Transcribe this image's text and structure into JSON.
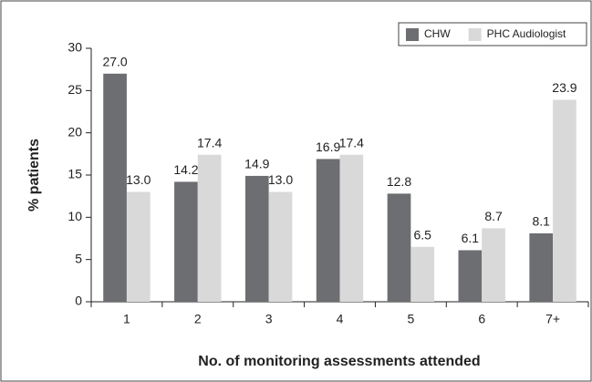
{
  "chart_data": {
    "type": "bar",
    "x_label": "No. of monitoring assessments attended",
    "y_label": "% patients",
    "categories": [
      "1",
      "2",
      "3",
      "4",
      "5",
      "6",
      "7+"
    ],
    "series": [
      {
        "name": "CHW",
        "color": "#6d6e71",
        "values": [
          27.0,
          14.2,
          14.9,
          16.9,
          12.8,
          6.1,
          8.1
        ],
        "value_labels": [
          "27.0",
          "14.2",
          "14.9",
          "16.9",
          "12.8",
          "6.1",
          "8.1"
        ]
      },
      {
        "name": "PHC Audiologist",
        "color": "#d9d9d9",
        "values": [
          13.0,
          17.4,
          13.0,
          17.4,
          6.5,
          8.7,
          23.9
        ],
        "value_labels": [
          "13.0",
          "17.4",
          "13.0",
          "17.4",
          "6.5",
          "8.7",
          "23.9"
        ]
      }
    ],
    "ylim": [
      0,
      30
    ],
    "yticks": [
      0,
      5,
      10,
      15,
      20,
      25,
      30
    ],
    "legend": "top-right"
  }
}
